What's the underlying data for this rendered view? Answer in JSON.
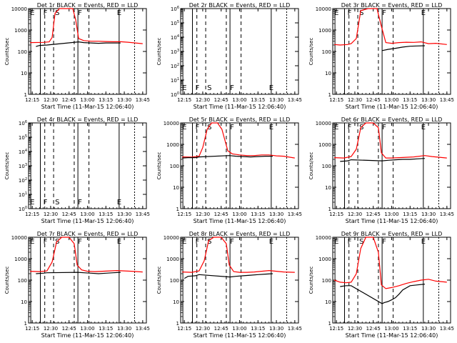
{
  "colors": {
    "events": "#000000",
    "lld": "#ff0000",
    "background": "#ffffff",
    "axes": "#000000"
  },
  "chart_data": [
    {
      "type": "line",
      "title": "Det 1r BLACK = Events, RED = LLD",
      "xlabel": "Start Time (11-Mar-15 12:06:40)",
      "ylabel": "Counts/sec",
      "yscale": "log",
      "ylim": [
        1,
        10000
      ],
      "xlim": [
        12.2,
        13.8
      ],
      "y_tick_labels": [
        "1",
        "10",
        "100",
        "1000",
        "10000"
      ],
      "x_tick_labels": [
        "12:15",
        "12:30",
        "12:45",
        "13:00",
        "13:15",
        "13:30",
        "13:45"
      ],
      "markers": [
        {
          "label": "E",
          "x": 12.22
        },
        {
          "label": "F",
          "x": 12.4
        },
        {
          "label": "S",
          "x": 12.56
        },
        {
          "label": "F",
          "x": 12.87
        },
        {
          "label": "E",
          "x": 13.4
        }
      ],
      "series": [
        {
          "name": "LLD",
          "color": "red",
          "x": [
            12.22,
            12.4,
            12.48,
            12.52,
            12.56,
            12.62,
            12.72,
            12.8,
            12.84,
            12.88,
            12.95,
            13.05,
            13.15,
            13.25,
            13.35,
            13.45,
            13.55,
            13.65,
            13.75
          ],
          "y": [
            260,
            265,
            280,
            450,
            6000,
            12000,
            12000,
            11000,
            3000,
            400,
            320,
            300,
            300,
            290,
            285,
            285,
            270,
            250,
            230
          ]
        },
        {
          "name": "Events",
          "color": "black",
          "x": [
            12.3,
            12.35,
            12.45,
            12.88,
            12.95,
            13.05,
            13.15,
            13.25,
            13.35,
            13.45
          ],
          "y": [
            170,
            190,
            200,
            280,
            260,
            250,
            240,
            250,
            250,
            250
          ]
        }
      ]
    },
    {
      "type": "line",
      "title": "Det 2r BLACK = Events, RED = LLD",
      "xlabel": "Start Time (11-Mar-15 12:06:40)",
      "ylabel": "Counts/sec",
      "yscale": "log",
      "ylim": [
        1,
        1000000
      ],
      "xlim": [
        12.2,
        13.8
      ],
      "y_tick_labels": [
        "10^0",
        "10^1",
        "10^2",
        "10^3",
        "10^4",
        "10^5",
        "10^6"
      ],
      "x_tick_labels": [
        "12:15",
        "12:30",
        "12:45",
        "13:00",
        "13:15",
        "13:30",
        "13:45"
      ],
      "markers": [
        {
          "label": "E",
          "x": 12.22
        },
        {
          "label": "F",
          "x": 12.4
        },
        {
          "label": "S",
          "x": 12.56
        },
        {
          "label": "F",
          "x": 12.87
        },
        {
          "label": "E",
          "x": 13.4
        }
      ],
      "series": []
    },
    {
      "type": "line",
      "title": "Det 3r BLACK = Events, RED = LLD",
      "xlabel": "Start Time (11-Mar-15 12:06:40)",
      "ylabel": "Counts/sec",
      "yscale": "log",
      "ylim": [
        1,
        10000
      ],
      "xlim": [
        12.2,
        13.8
      ],
      "y_tick_labels": [
        "1",
        "10",
        "100",
        "1000",
        "10000"
      ],
      "x_tick_labels": [
        "12:15",
        "12:30",
        "12:45",
        "13:00",
        "13:15",
        "13:30",
        "13:45"
      ],
      "markers": [
        {
          "label": "E",
          "x": 12.22
        },
        {
          "label": "F",
          "x": 12.4
        },
        {
          "label": "S",
          "x": 12.56
        },
        {
          "label": "F",
          "x": 12.87
        },
        {
          "label": "E",
          "x": 13.4
        }
      ],
      "series": [
        {
          "name": "LLD",
          "color": "red",
          "x": [
            12.22,
            12.3,
            12.4,
            12.45,
            12.52,
            12.58,
            12.68,
            12.8,
            12.86,
            12.92,
            13.0,
            13.1,
            13.2,
            13.3,
            13.4,
            13.5,
            13.6,
            13.75
          ],
          "y": [
            210,
            200,
            210,
            230,
            400,
            8000,
            12000,
            11000,
            1500,
            260,
            240,
            260,
            270,
            265,
            280,
            230,
            240,
            210
          ]
        },
        {
          "name": "Events",
          "color": "black",
          "x": [
            12.87,
            12.95,
            13.05,
            13.15,
            13.25,
            13.35,
            13.45
          ],
          "y": [
            110,
            125,
            140,
            160,
            175,
            180,
            185
          ]
        }
      ]
    },
    {
      "type": "line",
      "title": "Det 4r BLACK = Events, RED = LLD",
      "xlabel": "Start Time (11-Mar-15 12:06:40)",
      "ylabel": "Counts/sec",
      "yscale": "log",
      "ylim": [
        1,
        1000000
      ],
      "xlim": [
        12.2,
        13.8
      ],
      "y_tick_labels": [
        "10^0",
        "10^1",
        "10^2",
        "10^3",
        "10^4",
        "10^5",
        "10^6"
      ],
      "x_tick_labels": [
        "12:15",
        "12:30",
        "12:45",
        "13:00",
        "13:15",
        "13:30",
        "13:45"
      ],
      "markers": [
        {
          "label": "E",
          "x": 12.22
        },
        {
          "label": "F",
          "x": 12.4
        },
        {
          "label": "S",
          "x": 12.56
        },
        {
          "label": "F",
          "x": 12.87
        },
        {
          "label": "E",
          "x": 13.4
        }
      ],
      "series": []
    },
    {
      "type": "line",
      "title": "Det 5r BLACK = Events, RED = LLD",
      "xlabel": "Start Time (11-Mar-15 12:06:40)",
      "ylabel": "Counts/sec",
      "yscale": "log",
      "ylim": [
        1,
        10000
      ],
      "xlim": [
        12.2,
        13.8
      ],
      "y_tick_labels": [
        "1",
        "10",
        "100",
        "1000",
        "10000"
      ],
      "x_tick_labels": [
        "12:15",
        "12:30",
        "12:45",
        "13:00",
        "13:15",
        "13:30",
        "13:45"
      ],
      "markers": [
        {
          "label": "E",
          "x": 12.22
        },
        {
          "label": "F",
          "x": 12.4
        },
        {
          "label": "S",
          "x": 12.56
        },
        {
          "label": "F",
          "x": 12.87
        },
        {
          "label": "E",
          "x": 13.4
        }
      ],
      "series": [
        {
          "name": "LLD",
          "color": "red",
          "x": [
            12.22,
            12.35,
            12.45,
            12.5,
            12.56,
            12.62,
            12.7,
            12.76,
            12.84,
            12.9,
            13.0,
            13.1,
            13.2,
            13.3,
            13.4,
            13.5,
            13.6,
            13.75
          ],
          "y": [
            260,
            255,
            280,
            700,
            5000,
            10000,
            10000,
            5000,
            500,
            360,
            320,
            300,
            300,
            320,
            320,
            290,
            280,
            230
          ]
        },
        {
          "name": "Events",
          "color": "black",
          "x": [
            12.22,
            12.3,
            12.4,
            12.45,
            12.86,
            12.95,
            13.05,
            13.15,
            13.25,
            13.35,
            13.45
          ],
          "y": [
            230,
            240,
            240,
            260,
            300,
            280,
            270,
            260,
            270,
            280,
            280
          ]
        }
      ]
    },
    {
      "type": "line",
      "title": "Det 6r BLACK = Events, RED = LLD",
      "xlabel": "Start Time (11-Mar-15 12:06:40)",
      "ylabel": "Counts/sec",
      "yscale": "log",
      "ylim": [
        1,
        10000
      ],
      "xlim": [
        12.2,
        13.8
      ],
      "y_tick_labels": [
        "1",
        "10",
        "100",
        "1000",
        "10000"
      ],
      "x_tick_labels": [
        "12:15",
        "12:30",
        "12:45",
        "13:00",
        "13:15",
        "13:30",
        "13:45"
      ],
      "markers": [
        {
          "label": "E",
          "x": 12.22
        },
        {
          "label": "F",
          "x": 12.4
        },
        {
          "label": "S",
          "x": 12.56
        },
        {
          "label": "F",
          "x": 12.87
        },
        {
          "label": "E",
          "x": 13.4
        }
      ],
      "series": [
        {
          "name": "LLD",
          "color": "red",
          "x": [
            12.22,
            12.35,
            12.45,
            12.52,
            12.58,
            12.65,
            12.75,
            12.82,
            12.86,
            12.92,
            13.0,
            13.1,
            13.2,
            13.3,
            13.45,
            13.55,
            13.65,
            13.75
          ],
          "y": [
            240,
            230,
            270,
            600,
            6000,
            12000,
            12000,
            6000,
            400,
            230,
            230,
            240,
            250,
            260,
            300,
            270,
            250,
            230
          ]
        },
        {
          "name": "Events",
          "color": "black",
          "x": [
            12.3,
            12.4,
            12.45,
            12.87,
            12.95,
            13.05,
            13.15,
            13.25,
            13.35,
            13.45
          ],
          "y": [
            160,
            170,
            190,
            170,
            180,
            190,
            200,
            200,
            210,
            220
          ]
        }
      ]
    },
    {
      "type": "line",
      "title": "Det 7r BLACK = Events, RED = LLD",
      "xlabel": "Start Time (11-Mar-15 12:06:40)",
      "ylabel": "Counts/sec",
      "yscale": "log",
      "ylim": [
        1,
        10000
      ],
      "xlim": [
        12.2,
        13.8
      ],
      "y_tick_labels": [
        "1",
        "10",
        "100",
        "1000",
        "10000"
      ],
      "x_tick_labels": [
        "12:15",
        "12:30",
        "12:45",
        "13:00",
        "13:15",
        "13:30",
        "13:45"
      ],
      "markers": [
        {
          "label": "E",
          "x": 12.22
        },
        {
          "label": "F",
          "x": 12.4
        },
        {
          "label": "S",
          "x": 12.56
        },
        {
          "label": "F",
          "x": 12.87
        },
        {
          "label": "E",
          "x": 13.4
        }
      ],
      "series": [
        {
          "name": "LLD",
          "color": "red",
          "x": [
            12.22,
            12.35,
            12.45,
            12.52,
            12.58,
            12.65,
            12.75,
            12.82,
            12.86,
            12.92,
            13.0,
            13.1,
            13.2,
            13.3,
            13.4,
            13.5,
            13.6,
            13.75
          ],
          "y": [
            260,
            250,
            270,
            700,
            6000,
            12000,
            12000,
            5000,
            500,
            300,
            260,
            250,
            260,
            270,
            280,
            270,
            260,
            240
          ]
        },
        {
          "name": "Events",
          "color": "black",
          "x": [
            12.3,
            12.4,
            12.45,
            12.87,
            12.95,
            13.05,
            13.15,
            13.25,
            13.35,
            13.45
          ],
          "y": [
            200,
            210,
            220,
            230,
            220,
            210,
            200,
            210,
            220,
            230
          ]
        }
      ]
    },
    {
      "type": "line",
      "title": "Det 8r BLACK = Events, RED = LLD",
      "xlabel": "Start Time (11-Mar-15 12:06:40)",
      "ylabel": "Counts/sec",
      "yscale": "log",
      "ylim": [
        1,
        10000
      ],
      "xlim": [
        12.2,
        13.8
      ],
      "y_tick_labels": [
        "1",
        "10",
        "100",
        "1000",
        "10000"
      ],
      "x_tick_labels": [
        "12:15",
        "12:30",
        "12:45",
        "13:00",
        "13:15",
        "13:30",
        "13:45"
      ],
      "markers": [
        {
          "label": "E",
          "x": 12.22
        },
        {
          "label": "F",
          "x": 12.4
        },
        {
          "label": "S",
          "x": 12.56
        },
        {
          "label": "F",
          "x": 12.87
        },
        {
          "label": "E",
          "x": 13.4
        }
      ],
      "series": [
        {
          "name": "LLD",
          "color": "red",
          "x": [
            12.22,
            12.35,
            12.45,
            12.52,
            12.58,
            12.65,
            12.75,
            12.82,
            12.86,
            12.92,
            13.0,
            13.1,
            13.2,
            13.3,
            13.4,
            13.5,
            13.6,
            13.75
          ],
          "y": [
            240,
            230,
            270,
            800,
            7000,
            12000,
            12000,
            5000,
            500,
            250,
            230,
            230,
            240,
            260,
            280,
            260,
            240,
            230
          ]
        },
        {
          "name": "Events",
          "color": "black",
          "x": [
            12.25,
            12.3,
            12.4,
            12.45,
            12.87,
            12.95,
            13.05,
            13.15,
            13.25,
            13.35,
            13.45
          ],
          "y": [
            120,
            150,
            160,
            180,
            140,
            150,
            160,
            170,
            180,
            190,
            200
          ]
        }
      ]
    },
    {
      "type": "line",
      "title": "Det 9r BLACK = Events, RED = LLD",
      "xlabel": "Start Time (11-Mar-15 12:06:40)",
      "ylabel": "Counts/sec",
      "yscale": "log",
      "ylim": [
        1,
        10000
      ],
      "xlim": [
        12.2,
        13.8
      ],
      "y_tick_labels": [
        "1",
        "10",
        "100",
        "1000",
        "10000"
      ],
      "x_tick_labels": [
        "12:15",
        "12:30",
        "12:45",
        "13:00",
        "13:15",
        "13:30",
        "13:45"
      ],
      "markers": [
        {
          "label": "E",
          "x": 12.22
        },
        {
          "label": "F",
          "x": 12.4
        },
        {
          "label": "S",
          "x": 12.56
        },
        {
          "label": "F",
          "x": 12.87
        },
        {
          "label": "E",
          "x": 13.4
        }
      ],
      "series": [
        {
          "name": "LLD",
          "color": "red",
          "x": [
            12.22,
            12.3,
            12.38,
            12.45,
            12.52,
            12.58,
            12.65,
            12.75,
            12.82,
            12.86,
            12.92,
            13.0,
            13.1,
            13.2,
            13.3,
            13.4,
            13.5,
            13.6,
            13.75
          ],
          "y": [
            100,
            80,
            75,
            80,
            200,
            3000,
            10000,
            10000,
            2000,
            60,
            40,
            45,
            55,
            70,
            85,
            100,
            110,
            90,
            80
          ]
        },
        {
          "name": "Events",
          "color": "black",
          "x": [
            12.3,
            12.38,
            12.45,
            12.87,
            12.9,
            12.95,
            13.0,
            13.05,
            13.1,
            13.15,
            13.25,
            13.35,
            13.45
          ],
          "y": [
            50,
            55,
            55,
            8,
            9,
            10,
            12,
            15,
            22,
            35,
            55,
            60,
            65
          ]
        }
      ]
    }
  ]
}
